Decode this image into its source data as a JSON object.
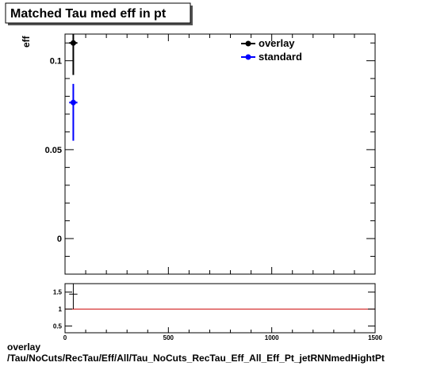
{
  "chart_data": [
    {
      "type": "scatter",
      "title": "Matched Tau med eff in pt",
      "ylabel": "eff",
      "xlabel": "",
      "xlim": [
        0,
        1500
      ],
      "ylim": [
        -0.02,
        0.115
      ],
      "y_ticks": [
        0,
        0.05,
        0.1
      ],
      "y_tick_labels": [
        "0",
        "0.05",
        "0.1"
      ],
      "grid": false,
      "legend_position": "top-right",
      "series": [
        {
          "name": "overlay",
          "color": "#000000",
          "points": [
            {
              "x": 40,
              "xerr": 20,
              "y": 0.11,
              "ylo": 0.092,
              "yhi": 0.115
            }
          ]
        },
        {
          "name": "standard",
          "color": "#0000ff",
          "points": [
            {
              "x": 40,
              "xerr": 20,
              "y": 0.0765,
              "ylo": 0.055,
              "yhi": 0.087
            }
          ]
        }
      ]
    },
    {
      "type": "line",
      "title": "",
      "xlim": [
        0,
        1500
      ],
      "ylim": [
        0.3,
        1.75
      ],
      "x_ticks": [
        0,
        500,
        1000,
        1500
      ],
      "x_tick_labels": [
        "0",
        "500",
        "1000",
        "1500"
      ],
      "y_ticks": [
        0.5,
        1,
        1.5
      ],
      "y_tick_labels": [
        "0.5",
        "1",
        "1.5"
      ],
      "reference_line": {
        "y": 1,
        "color": "#cc0000"
      },
      "series": [
        {
          "name": "",
          "color": "#000000",
          "points": [
            {
              "x": 40,
              "xerr": 20,
              "y": 1.44,
              "ylo": 1.0,
              "yhi": 1.75
            }
          ]
        }
      ]
    }
  ],
  "footer": {
    "line1": "overlay",
    "line2": "/Tau/NoCuts/RecTau/Eff/All/Tau_NoCuts_RecTau_Eff_All_Eff_Pt_jetRNNmedHightPt"
  }
}
